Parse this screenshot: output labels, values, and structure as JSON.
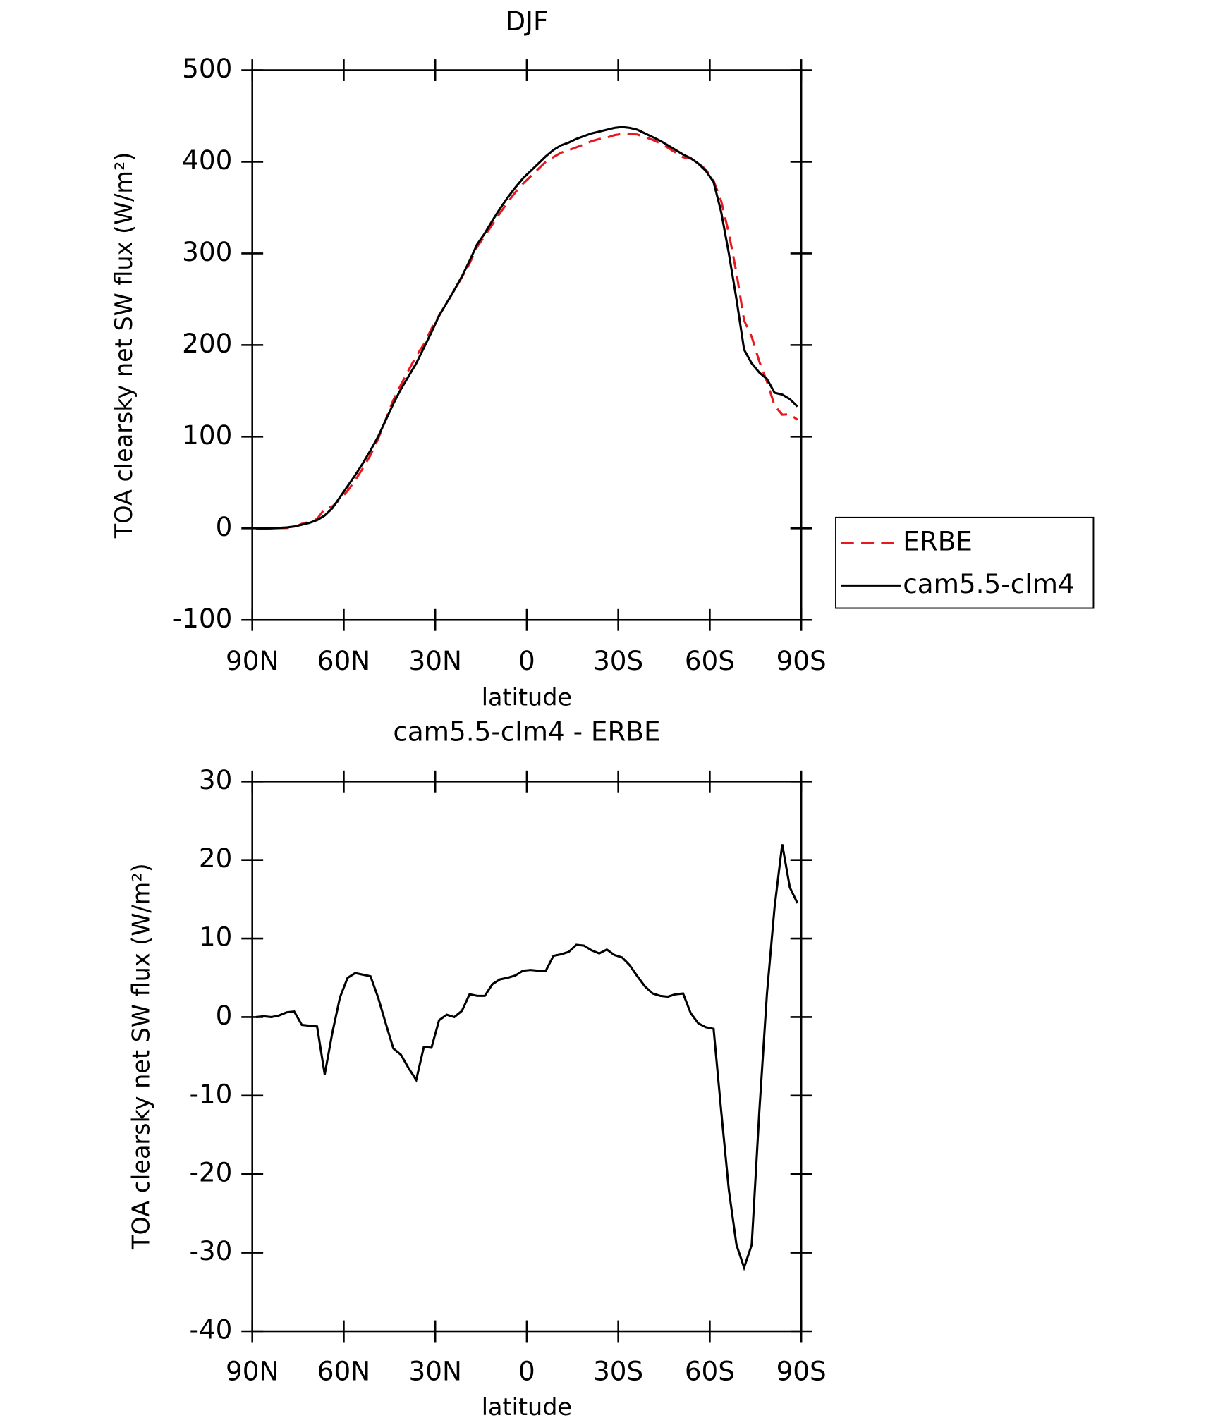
{
  "chart_data": [
    {
      "type": "line",
      "title": "DJF",
      "xlabel": "latitude",
      "ylabel": "TOA clearsky net SW flux (W/m²)",
      "x": [
        88.75,
        86.25,
        83.75,
        81.25,
        78.75,
        76.25,
        73.75,
        71.25,
        68.75,
        66.25,
        63.75,
        61.25,
        58.75,
        56.25,
        53.75,
        51.25,
        48.75,
        46.25,
        43.75,
        41.25,
        38.75,
        36.25,
        33.75,
        31.25,
        28.75,
        26.25,
        23.75,
        21.25,
        18.75,
        16.25,
        13.75,
        11.25,
        8.75,
        6.25,
        3.75,
        1.25,
        -1.25,
        -3.75,
        -6.25,
        -8.75,
        -11.25,
        -13.75,
        -16.25,
        -18.75,
        -21.25,
        -23.75,
        -26.25,
        -28.75,
        -31.25,
        -33.75,
        -36.25,
        -38.75,
        -41.25,
        -43.75,
        -46.25,
        -48.75,
        -51.25,
        -53.75,
        -56.25,
        -58.75,
        -61.25,
        -63.75,
        -66.25,
        -68.75,
        -71.25,
        -73.75,
        -76.25,
        -78.75,
        -81.25,
        -83.75,
        -86.25,
        -88.75
      ],
      "series": [
        {
          "name": "ERBE",
          "color": "#e8191e",
          "style": "dashed",
          "values": [
            0,
            -0.1,
            0,
            0.3,
            0.4,
            1.3,
            5,
            7.1,
            10.2,
            21.3,
            24,
            31.5,
            41,
            52.4,
            65.6,
            79.8,
            97.5,
            118.8,
            140,
            156.8,
            172.5,
            188,
            200.8,
            217.9,
            232.4,
            245.7,
            260,
            274.2,
            289.1,
            307.3,
            319.3,
            331.8,
            344.2,
            356,
            366.7,
            376.1,
            384,
            392.1,
            400.1,
            405.2,
            410,
            412.7,
            415.8,
            418.9,
            422.5,
            424.9,
            426.4,
            429.1,
            430.4,
            430.4,
            429.8,
            427.1,
            424,
            420.3,
            415.4,
            410.1,
            405,
            403.5,
            398.8,
            391.3,
            379.5,
            357,
            322,
            279,
            226.9,
            209,
            182,
            160,
            134,
            124,
            124.5,
            118.5
          ]
        },
        {
          "name": "cam5.5-clm4",
          "color": "#000000",
          "style": "solid",
          "values": [
            0,
            0,
            0,
            0.5,
            1,
            2,
            4,
            6,
            9,
            14,
            22,
            34,
            46,
            58,
            71,
            85,
            100,
            118,
            136,
            152,
            166,
            180,
            197,
            214,
            232,
            246,
            260,
            275,
            292,
            310,
            322,
            336,
            349,
            361,
            372,
            382,
            390,
            398,
            406,
            413,
            418,
            421,
            425,
            428,
            431,
            433,
            435,
            437,
            438,
            437,
            435,
            431,
            427,
            423,
            418,
            413,
            408,
            404,
            398,
            390,
            378,
            345,
            300,
            250,
            195,
            180,
            170,
            163,
            148,
            146,
            141,
            133
          ]
        }
      ],
      "xlim": [
        90,
        -90
      ],
      "xticks": [
        {
          "value": 90,
          "label": "90N"
        },
        {
          "value": 60,
          "label": "60N"
        },
        {
          "value": 30,
          "label": "30N"
        },
        0,
        {
          "value": -30,
          "label": "30S"
        },
        {
          "value": -60,
          "label": "60S"
        },
        {
          "value": -90,
          "label": "90S"
        }
      ],
      "ylim": [
        -100,
        500
      ],
      "yticks": [
        -100,
        0,
        100,
        200,
        300,
        400,
        500
      ],
      "legend": "right"
    },
    {
      "type": "line",
      "title": "cam5.5-clm4 - ERBE",
      "xlabel": "latitude",
      "ylabel": "TOA clearsky net SW flux (W/m²)",
      "x": [
        88.75,
        86.25,
        83.75,
        81.25,
        78.75,
        76.25,
        73.75,
        71.25,
        68.75,
        66.25,
        63.75,
        61.25,
        58.75,
        56.25,
        53.75,
        51.25,
        48.75,
        46.25,
        43.75,
        41.25,
        38.75,
        36.25,
        33.75,
        31.25,
        28.75,
        26.25,
        23.75,
        21.25,
        18.75,
        16.25,
        13.75,
        11.25,
        8.75,
        6.25,
        3.75,
        1.25,
        -1.25,
        -3.75,
        -6.25,
        -8.75,
        -11.25,
        -13.75,
        -16.25,
        -18.75,
        -21.25,
        -23.75,
        -26.25,
        -28.75,
        -31.25,
        -33.75,
        -36.25,
        -38.75,
        -41.25,
        -43.75,
        -46.25,
        -48.75,
        -51.25,
        -53.75,
        -56.25,
        -58.75,
        -61.25,
        -63.75,
        -66.25,
        -68.75,
        -71.25,
        -73.75,
        -76.25,
        -78.75,
        -81.25,
        -83.75,
        -86.25,
        -88.75
      ],
      "color": "#000000",
      "values": [
        0,
        0.1,
        0,
        0.2,
        0.6,
        0.7,
        -1,
        -1.1,
        -1.2,
        -7.3,
        -2,
        2.5,
        5,
        5.6,
        5.4,
        5.2,
        2.5,
        -0.8,
        -4,
        -4.8,
        -6.5,
        -8,
        -3.8,
        -3.9,
        -0.4,
        0.3,
        0,
        0.8,
        2.9,
        2.7,
        2.7,
        4.2,
        4.8,
        5,
        5.3,
        5.9,
        6,
        5.9,
        5.9,
        7.8,
        8,
        8.3,
        9.2,
        9.1,
        8.5,
        8.1,
        8.6,
        7.9,
        7.6,
        6.6,
        5.2,
        3.9,
        3,
        2.7,
        2.6,
        2.9,
        3,
        0.5,
        -0.8,
        -1.3,
        -1.5,
        -12,
        -22,
        -29,
        -31.9,
        -29,
        -12,
        3,
        14,
        22,
        16.5,
        14.5
      ],
      "xlim": [
        90,
        -90
      ],
      "xticks": [
        {
          "value": 90,
          "label": "90N"
        },
        {
          "value": 60,
          "label": "60N"
        },
        {
          "value": 30,
          "label": "30N"
        },
        0,
        {
          "value": -30,
          "label": "30S"
        },
        {
          "value": -60,
          "label": "60S"
        },
        {
          "value": -90,
          "label": "90S"
        }
      ],
      "ylim": [
        -40,
        30
      ],
      "yticks": [
        -40,
        -30,
        -20,
        -10,
        0,
        10,
        20,
        30
      ]
    }
  ]
}
